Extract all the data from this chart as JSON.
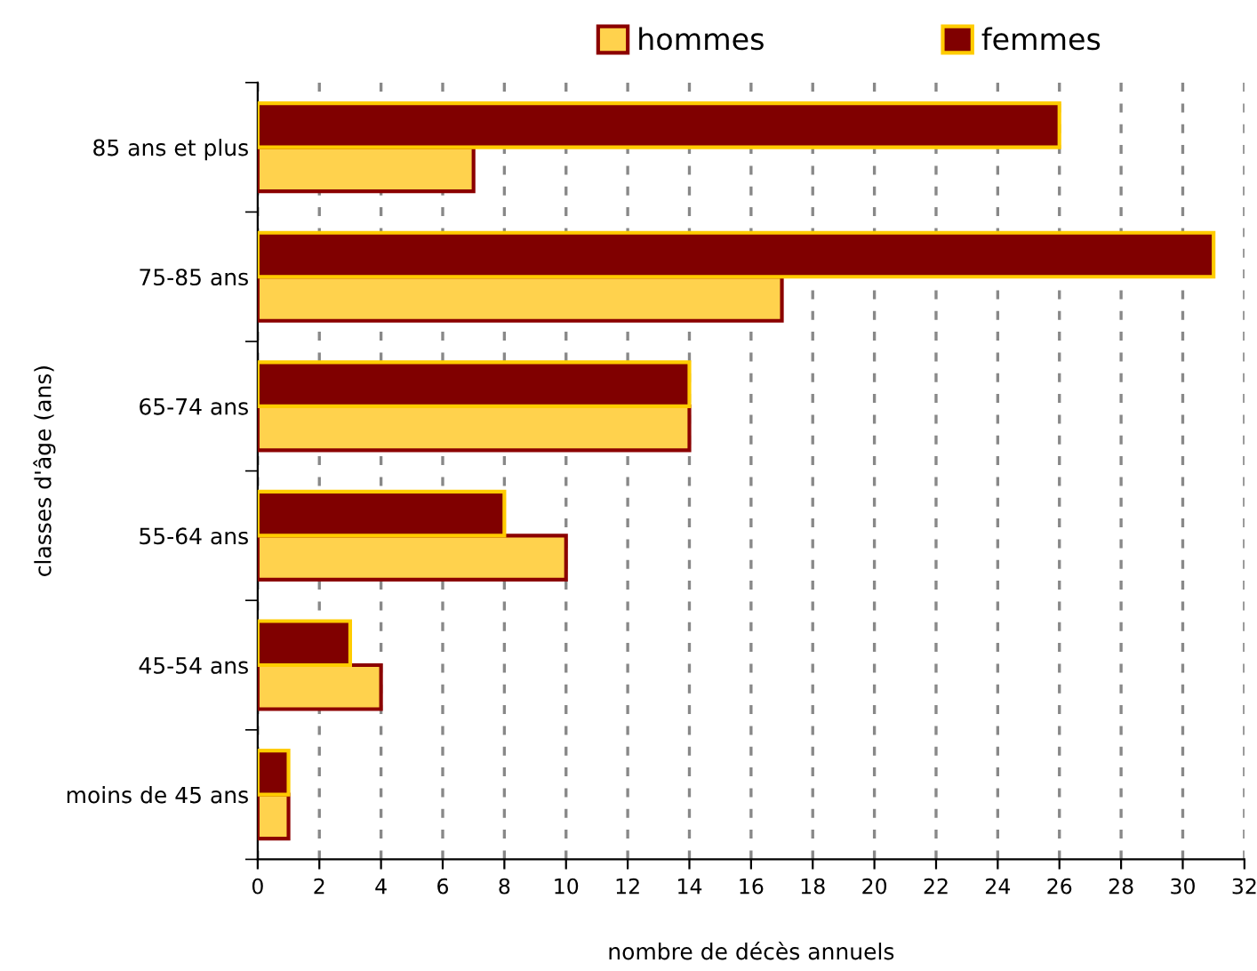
{
  "chart_data": {
    "type": "bar",
    "orientation": "horizontal",
    "xlabel": "nombre de décès annuels",
    "ylabel": "classes d'âge (ans)",
    "categories": [
      "85 ans et plus",
      "75-85 ans",
      "65-74 ans",
      "55-64 ans",
      "45-54 ans",
      "moins de 45 ans"
    ],
    "series": [
      {
        "name": "hommes",
        "color": "#ffd24d",
        "values": [
          7,
          17,
          14,
          10,
          4,
          1
        ]
      },
      {
        "name": "femmes",
        "color": "#800000",
        "values": [
          26,
          31,
          14,
          8,
          3,
          1
        ]
      }
    ],
    "xlim": [
      0,
      32
    ],
    "xticks": [
      0,
      2,
      4,
      6,
      8,
      10,
      12,
      14,
      16,
      18,
      20,
      22,
      24,
      26,
      28,
      30,
      32
    ],
    "grid": "x",
    "legend": "top"
  }
}
